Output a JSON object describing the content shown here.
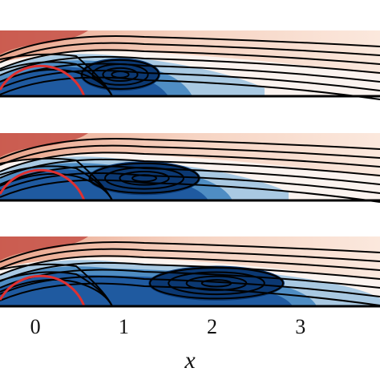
{
  "chart_data": {
    "type": "flow-field",
    "xlabel": "x",
    "xlim": [
      -0.4,
      3.9
    ],
    "xticks": [
      0,
      1,
      2,
      3
    ]
  }
}
